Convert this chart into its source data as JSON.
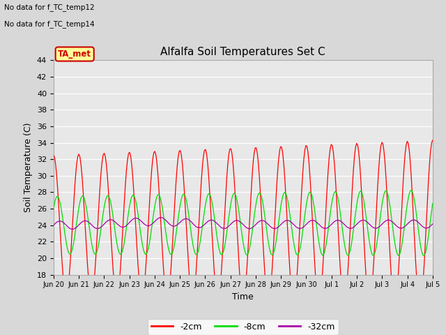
{
  "title": "Alfalfa Soil Temperatures Set C",
  "ylabel": "Soil Temperature (C)",
  "xlabel": "Time",
  "no_data_text": [
    "No data for f_TC_temp12",
    "No data for f_TC_temp14"
  ],
  "ta_met_label": "TA_met",
  "ylim": [
    18,
    44
  ],
  "fig_facecolor": "#d8d8d8",
  "plot_facecolor": "#e8e8e8",
  "line_colors": {
    "2cm": "#ff0000",
    "8cm": "#00dd00",
    "32cm": "#aa00aa"
  },
  "legend_labels": [
    "-2cm",
    "-8cm",
    "-32cm"
  ],
  "x_tick_labels": [
    "Jun 20",
    "Jun 21",
    "Jun 22",
    "Jun 23",
    "Jun 24",
    "Jun 25",
    "Jun 26",
    "Jun 27",
    "Jun 28",
    "Jun 29",
    "Jun 30",
    "Jul 1",
    "Jul 2",
    "Jul 3",
    "Jul 4",
    "Jul 5"
  ],
  "n_days": 15
}
